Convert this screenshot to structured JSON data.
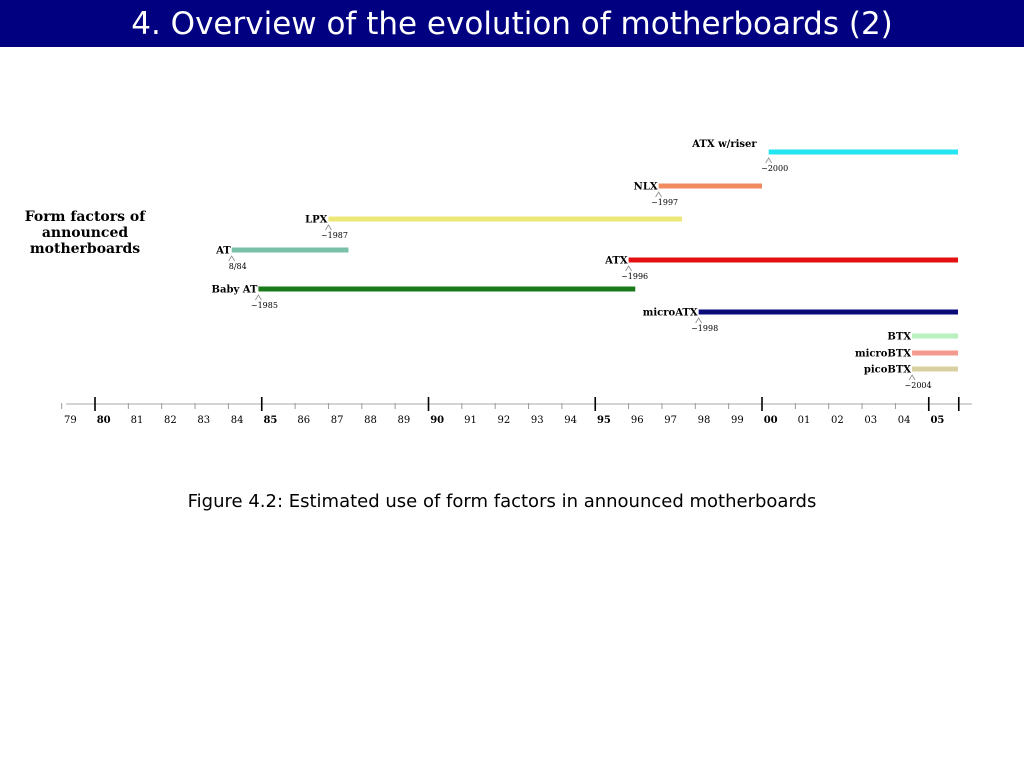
{
  "slide": {
    "title": "4. Overview of the evolution of motherboards (2)",
    "caption": "Figure 4.2: Estimated use of form factors in announced motherboards"
  },
  "chart_data": {
    "type": "timeline",
    "side_label": [
      "Form factors of",
      "announced",
      "motherboards"
    ],
    "x_range": [
      1979,
      2005.9
    ],
    "ticks": [
      {
        "label": "79",
        "bold": false
      },
      {
        "label": "80",
        "bold": true
      },
      {
        "label": "81",
        "bold": false
      },
      {
        "label": "82",
        "bold": false
      },
      {
        "label": "83",
        "bold": false
      },
      {
        "label": "84",
        "bold": false
      },
      {
        "label": "85",
        "bold": true
      },
      {
        "label": "86",
        "bold": false
      },
      {
        "label": "87",
        "bold": false
      },
      {
        "label": "88",
        "bold": false
      },
      {
        "label": "89",
        "bold": false
      },
      {
        "label": "90",
        "bold": true
      },
      {
        "label": "91",
        "bold": false
      },
      {
        "label": "92",
        "bold": false
      },
      {
        "label": "93",
        "bold": false
      },
      {
        "label": "94",
        "bold": false
      },
      {
        "label": "95",
        "bold": true
      },
      {
        "label": "96",
        "bold": false
      },
      {
        "label": "97",
        "bold": false
      },
      {
        "label": "98",
        "bold": false
      },
      {
        "label": "99",
        "bold": false
      },
      {
        "label": "00",
        "bold": true
      },
      {
        "label": "01",
        "bold": false
      },
      {
        "label": "02",
        "bold": false
      },
      {
        "label": "03",
        "bold": false
      },
      {
        "label": "04",
        "bold": false
      },
      {
        "label": "05",
        "bold": true
      }
    ],
    "series": [
      {
        "name": "ATX w/riser",
        "start": 2000.2,
        "end": 2005.9,
        "start_label": "~2000",
        "color": "#22e6f2"
      },
      {
        "name": "NLX",
        "start": 1996.9,
        "end": 2000.0,
        "start_label": "~1997",
        "color": "#f28c60"
      },
      {
        "name": "LPX",
        "start": 1987.0,
        "end": 1997.6,
        "start_label": "~1987",
        "color": "#ece878"
      },
      {
        "name": "AT",
        "start": 1984.1,
        "end": 1987.6,
        "start_label": "8/84",
        "color": "#78c0a8"
      },
      {
        "name": "ATX",
        "start": 1996.0,
        "end": 2005.95,
        "start_label": "~1996",
        "color": "#e21010"
      },
      {
        "name": "Baby AT",
        "start": 1984.9,
        "end": 1996.2,
        "start_label": "~1985",
        "color": "#1a7a1a"
      },
      {
        "name": "microATX",
        "start": 1998.1,
        "end": 2005.95,
        "start_label": "~1998",
        "color": "#0a0a78"
      },
      {
        "name": "BTX",
        "start": 2004.5,
        "end": 2005.95,
        "start_label": "",
        "color": "#b8f0c0"
      },
      {
        "name": "microBTX",
        "start": 2004.5,
        "end": 2005.95,
        "start_label": "",
        "color": "#f59a8e"
      },
      {
        "name": "picoBTX",
        "start": 2004.5,
        "end": 2005.95,
        "start_label": "~2004",
        "color": "#d8d0a0"
      }
    ]
  }
}
